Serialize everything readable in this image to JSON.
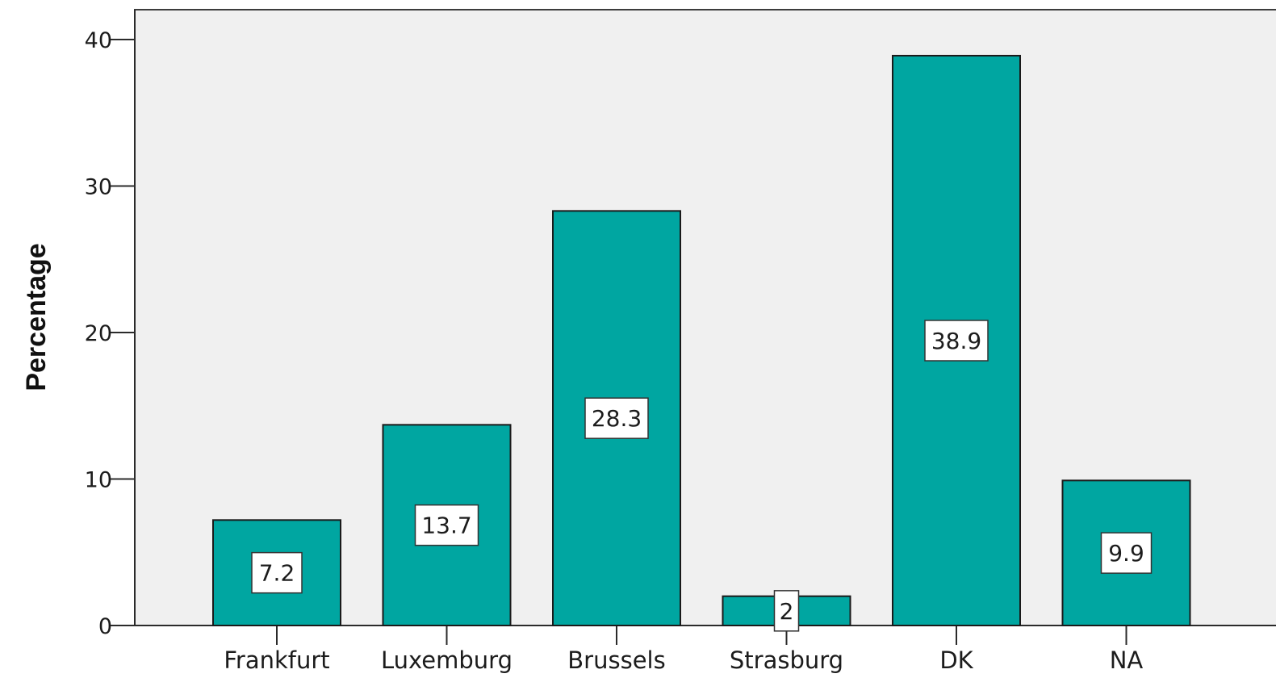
{
  "chart_data": {
    "type": "bar",
    "categories": [
      "Frankfurt",
      "Luxemburg",
      "Brussels",
      "Strasburg",
      "DK",
      "NA"
    ],
    "values": [
      7.2,
      13.7,
      28.3,
      2,
      38.9,
      9.9
    ],
    "data_labels": [
      "7.2",
      "13.7",
      "28.3",
      "2",
      "38.9",
      "9.9"
    ],
    "title": "",
    "xlabel": "",
    "ylabel": "Percentage",
    "ylim": [
      0,
      40
    ],
    "y_ticks": [
      0,
      10,
      20,
      30,
      40
    ],
    "grid": false,
    "bar_color": "#00a6a1",
    "plot_background": "#f0f0f0"
  }
}
